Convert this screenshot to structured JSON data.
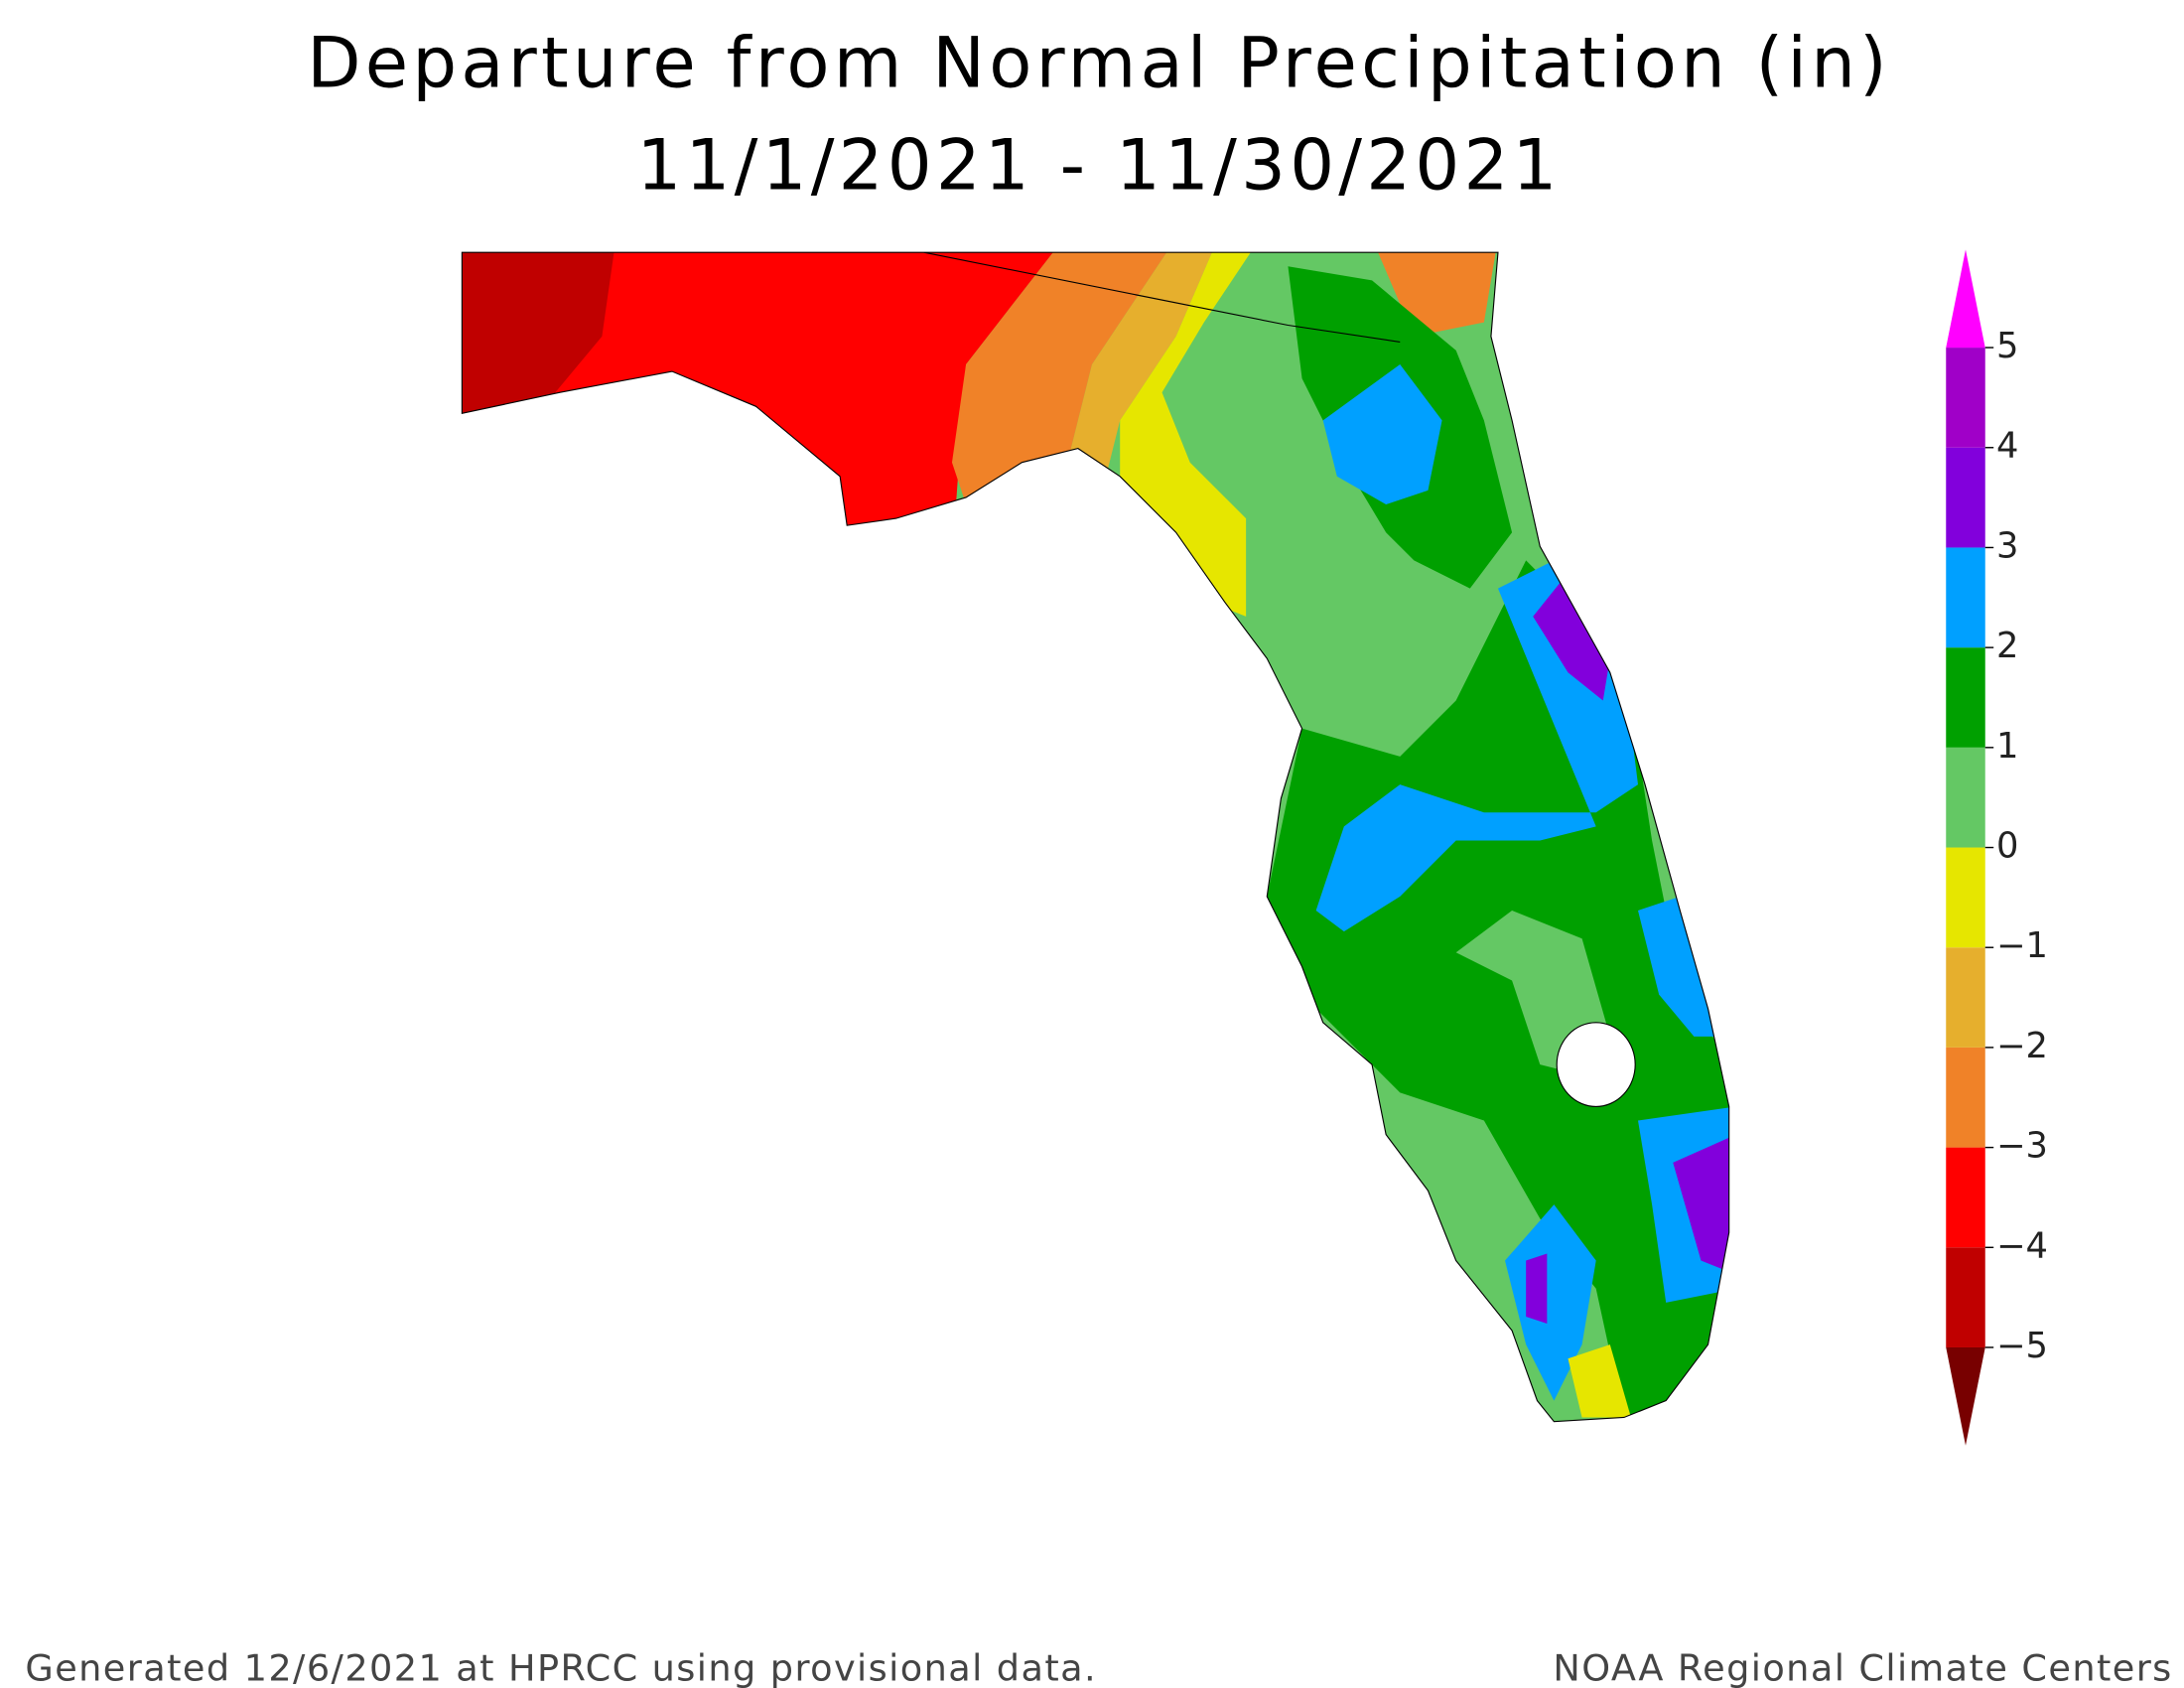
{
  "title": "Departure from Normal Precipitation (in)",
  "subtitle": "11/1/2021 - 11/30/2021",
  "legend": {
    "colors": [
      "#c00000",
      "#ff0000",
      "#f08228",
      "#e6af2d",
      "#e6e600",
      "#64c864",
      "#00a000",
      "#00a0ff",
      "#8200dc",
      "#a000c8"
    ],
    "below_color": "#780000",
    "above_color": "#ff00ff",
    "ticks": [
      {
        "value": -5,
        "label": "−5"
      },
      {
        "value": -4,
        "label": "−4"
      },
      {
        "value": -3,
        "label": "−3"
      },
      {
        "value": -2,
        "label": "−2"
      },
      {
        "value": -1,
        "label": "−1"
      },
      0,
      1,
      2,
      3,
      4,
      5
    ]
  },
  "footer": {
    "left": "Generated 12/6/2021 at HPRCC using provisional data.",
    "right": "NOAA Regional Climate Centers"
  }
}
